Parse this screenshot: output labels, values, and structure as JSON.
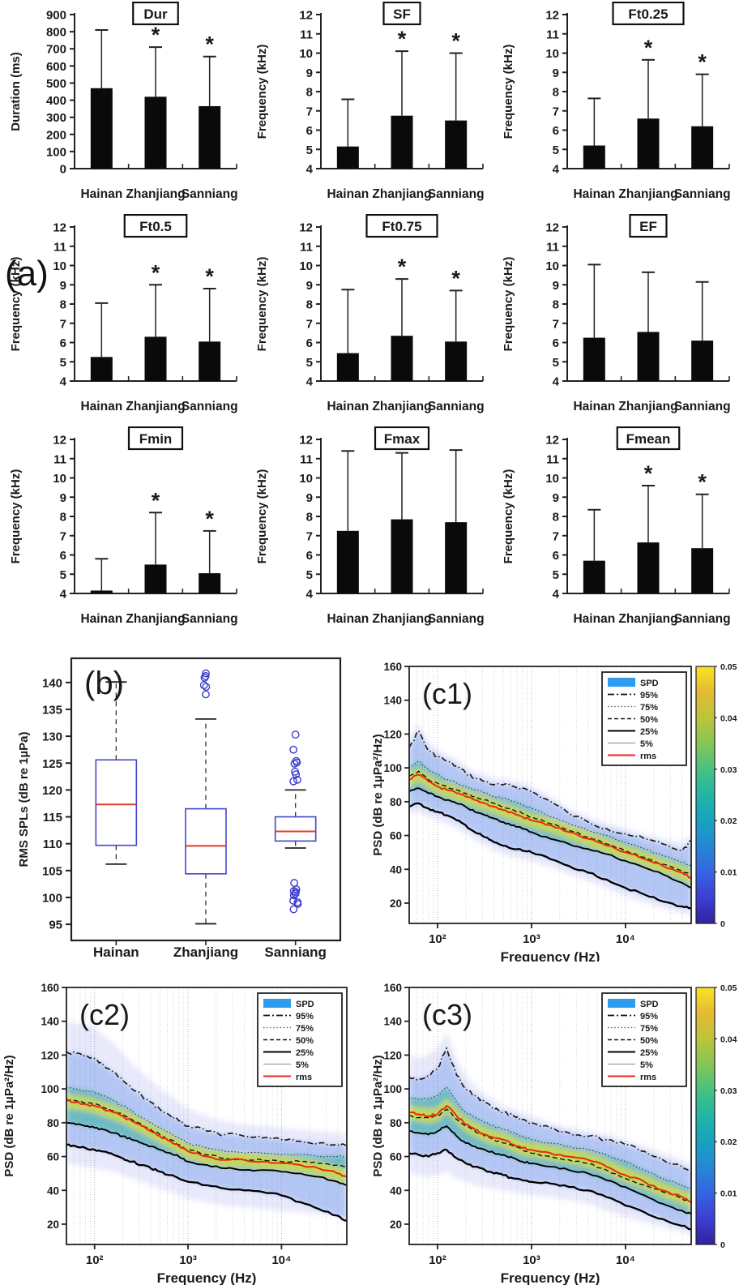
{
  "figure": {
    "panel_a_label": "(a)",
    "colors": {
      "bar": "#0a0a0a",
      "axis": "#222222",
      "box_stroke": "#4345cf",
      "median": "#e23b2e",
      "outlier": "#3a3ccc",
      "rms_line": "#e8281e",
      "spd_patch": "#2e9bef"
    }
  },
  "chart_data": [
    {
      "id": "dur",
      "type": "bar",
      "title": "Dur",
      "ylabel": "Duration (ms)",
      "ylim": [
        0,
        900
      ],
      "ytick_step": 100,
      "categories": [
        "Hainan",
        "Zhanjiang",
        "Sanniang"
      ],
      "values": [
        470,
        420,
        365
      ],
      "error_top": [
        810,
        710,
        655
      ],
      "sig": [
        false,
        true,
        true
      ]
    },
    {
      "id": "sf",
      "type": "bar",
      "title": "SF",
      "ylabel": "Frequency (kHz)",
      "ylim": [
        4,
        12
      ],
      "ytick_step": 1,
      "categories": [
        "Hainan",
        "Zhanjiang",
        "Sanniang"
      ],
      "values": [
        5.15,
        6.75,
        6.5
      ],
      "error_top": [
        7.6,
        10.1,
        10.0
      ],
      "sig": [
        false,
        true,
        true
      ]
    },
    {
      "id": "ft025",
      "type": "bar",
      "title": "Ft0.25",
      "ylabel": "Frequency (kHz)",
      "ylim": [
        4,
        12
      ],
      "ytick_step": 1,
      "categories": [
        "Hainan",
        "Zhanjiang",
        "Sanniang"
      ],
      "values": [
        5.2,
        6.6,
        6.2
      ],
      "error_top": [
        7.65,
        9.65,
        8.9
      ],
      "sig": [
        false,
        true,
        true
      ]
    },
    {
      "id": "ft05",
      "type": "bar",
      "title": "Ft0.5",
      "ylabel": "Frequency (kHz)",
      "ylim": [
        4,
        12
      ],
      "ytick_step": 1,
      "categories": [
        "Hainan",
        "Zhanjiang",
        "Sanniang"
      ],
      "values": [
        5.25,
        6.3,
        6.05
      ],
      "error_top": [
        8.05,
        9.0,
        8.8
      ],
      "sig": [
        false,
        true,
        true
      ]
    },
    {
      "id": "ft075",
      "type": "bar",
      "title": "Ft0.75",
      "ylabel": "Frequency (kHz)",
      "ylim": [
        4,
        12
      ],
      "ytick_step": 1,
      "categories": [
        "Hainan",
        "Zhanjiang",
        "Sanniang"
      ],
      "values": [
        5.45,
        6.35,
        6.05
      ],
      "error_top": [
        8.75,
        9.3,
        8.7
      ],
      "sig": [
        false,
        true,
        true
      ]
    },
    {
      "id": "ef",
      "type": "bar",
      "title": "EF",
      "ylabel": "Frequency (kHz)",
      "ylim": [
        4,
        12
      ],
      "ytick_step": 1,
      "categories": [
        "Hainan",
        "Zhanjiang",
        "Sanniang"
      ],
      "values": [
        6.25,
        6.55,
        6.1
      ],
      "error_top": [
        10.05,
        9.65,
        9.15
      ],
      "sig": [
        false,
        false,
        false
      ]
    },
    {
      "id": "fmin",
      "type": "bar",
      "title": "Fmin",
      "ylabel": "Frequency (kHz)",
      "ylim": [
        4,
        12
      ],
      "ytick_step": 1,
      "categories": [
        "Hainan",
        "Zhanjiang",
        "Sanniang"
      ],
      "values": [
        4.15,
        5.5,
        5.05
      ],
      "error_top": [
        5.8,
        8.2,
        7.25
      ],
      "sig": [
        false,
        true,
        true
      ]
    },
    {
      "id": "fmax",
      "type": "bar",
      "title": "Fmax",
      "ylabel": "Frequency (kHz)",
      "ylim": [
        4,
        12
      ],
      "ytick_step": 1,
      "categories": [
        "Hainan",
        "Zhanjiang",
        "Sanniang"
      ],
      "values": [
        7.25,
        7.85,
        7.7
      ],
      "error_top": [
        11.4,
        11.3,
        11.45
      ],
      "sig": [
        false,
        false,
        false
      ]
    },
    {
      "id": "fmean",
      "type": "bar",
      "title": "Fmean",
      "ylabel": "Frequency (kHz)",
      "ylim": [
        4,
        12
      ],
      "ytick_step": 1,
      "categories": [
        "Hainan",
        "Zhanjiang",
        "Sanniang"
      ],
      "values": [
        5.7,
        6.65,
        6.35
      ],
      "error_top": [
        8.35,
        9.6,
        9.15
      ],
      "sig": [
        false,
        true,
        true
      ]
    },
    {
      "id": "b",
      "type": "box",
      "label": "(b)",
      "ylabel": "RMS SPLs (dB re 1µPa)",
      "ylim": [
        92,
        144.5
      ],
      "yticks": [
        95,
        100,
        105,
        110,
        115,
        120,
        125,
        130,
        135,
        140
      ],
      "categories": [
        "Hainan",
        "Zhanjiang",
        "Sanniang"
      ],
      "boxes": [
        {
          "q1": 109.7,
          "median": 117.3,
          "q3": 125.6,
          "whisker_low": 106.2,
          "whisker_high": 140.1,
          "outliers": []
        },
        {
          "q1": 104.4,
          "median": 109.6,
          "q3": 116.5,
          "whisker_low": 95.1,
          "whisker_high": 133.2,
          "outliers": [
            137.8,
            139.2,
            139.5,
            140.9,
            141.2,
            141.7
          ]
        },
        {
          "q1": 110.5,
          "median": 112.3,
          "q3": 115.0,
          "whisker_low": 109.2,
          "whisker_high": 120.0,
          "outliers": [
            121.6,
            121.9,
            122.9,
            123.4,
            124.9,
            125.1,
            125.4,
            127.5,
            130.3,
            102.7,
            101.5,
            101.2,
            101.0,
            100.7,
            100.4,
            99.4,
            99.1,
            98.8,
            97.8
          ]
        }
      ]
    },
    {
      "id": "c1",
      "type": "spectral",
      "label": "(c1)",
      "ylabel": "PSD (dB re 1µPa²/Hz)",
      "xlabel": "Frequency (Hz)",
      "ylim": [
        8,
        160
      ],
      "yticks": [
        20,
        40,
        60,
        80,
        100,
        120,
        140,
        160
      ],
      "xlim": [
        50,
        50000
      ],
      "xticks": [
        {
          "value": 100,
          "label": "10²"
        },
        {
          "value": 1000,
          "label": "10³"
        },
        {
          "value": 10000,
          "label": "10⁴"
        }
      ],
      "legend": [
        {
          "label": "SPD",
          "style": "patch"
        },
        {
          "label": "95%",
          "style": "dashdot"
        },
        {
          "label": "75%",
          "style": "dotted"
        },
        {
          "label": "50%",
          "style": "dashed"
        },
        {
          "label": "25%",
          "style": "solid"
        },
        {
          "label": "5%",
          "style": "thin"
        },
        {
          "label": "rms",
          "style": "rms"
        }
      ],
      "colorbar": {
        "ticks": [
          "0.05",
          "0.04",
          "0.03",
          "0.02",
          "0.01",
          "0"
        ]
      },
      "x": [
        50,
        63,
        80,
        100,
        125,
        160,
        200,
        250,
        320,
        400,
        500,
        650,
        800,
        1000,
        1600,
        2500,
        4000,
        6300,
        10000,
        16000,
        25000,
        40000,
        50000
      ],
      "curves": {
        "p95": [
          112,
          122,
          110,
          107,
          104,
          101,
          97,
          94,
          92,
          90,
          90,
          89,
          88,
          86,
          80,
          73,
          68,
          64,
          61,
          58,
          55,
          51,
          57
        ],
        "p75": [
          100,
          104,
          99,
          96,
          93,
          91,
          89,
          87,
          85,
          83,
          82,
          80,
          78,
          76,
          71,
          67,
          63,
          60,
          56,
          52,
          48,
          44,
          42
        ],
        "p50": [
          95,
          98,
          93,
          91,
          89,
          87,
          85,
          83,
          81,
          79,
          77,
          75,
          73,
          71,
          67,
          63,
          59,
          55,
          51,
          47,
          43,
          39,
          37
        ],
        "rms": [
          93,
          96,
          92,
          89,
          87,
          85,
          83,
          81,
          79,
          77,
          75,
          73,
          71,
          69,
          66,
          62,
          58,
          54,
          50,
          46,
          42,
          38,
          35
        ],
        "p25": [
          86,
          88,
          85,
          83,
          81,
          79,
          77,
          74,
          72,
          70,
          68,
          66,
          64,
          62,
          58,
          55,
          52,
          49,
          45,
          41,
          37,
          32,
          29
        ],
        "p5": [
          77,
          79,
          76,
          74,
          72,
          69,
          66,
          62,
          59,
          56,
          54,
          52,
          51,
          50,
          46,
          42,
          38,
          34,
          29,
          25,
          21,
          18,
          17
        ]
      },
      "cloud_top": [
        118,
        126,
        115,
        111,
        108,
        105,
        101,
        98,
        96,
        94,
        94,
        92,
        91,
        89,
        83,
        76,
        71,
        67,
        64,
        61,
        58,
        56,
        60
      ],
      "cloud_bottom": [
        72,
        74,
        71,
        69,
        67,
        64,
        61,
        57,
        54,
        51,
        49,
        47,
        46,
        45,
        41,
        37,
        33,
        29,
        24,
        20,
        17,
        14,
        13
      ]
    },
    {
      "id": "c2",
      "type": "spectral",
      "label": "(c2)",
      "ylabel": "PSD (dB re 1µPa²/Hz)",
      "xlabel": "Frequency (Hz)",
      "ylim": [
        8,
        160
      ],
      "yticks": [
        20,
        40,
        60,
        80,
        100,
        120,
        140,
        160
      ],
      "xlim": [
        50,
        50000
      ],
      "xticks": [
        {
          "value": 100,
          "label": "10²"
        },
        {
          "value": 1000,
          "label": "10³"
        },
        {
          "value": 10000,
          "label": "10⁴"
        }
      ],
      "legend": [
        {
          "label": "SPD",
          "style": "patch"
        },
        {
          "label": "95%",
          "style": "dashdot"
        },
        {
          "label": "75%",
          "style": "dotted"
        },
        {
          "label": "50%",
          "style": "dashed"
        },
        {
          "label": "25%",
          "style": "solid"
        },
        {
          "label": "5%",
          "style": "thin"
        },
        {
          "label": "rms",
          "style": "rms"
        }
      ],
      "colorbar": null,
      "x": [
        50,
        63,
        80,
        100,
        125,
        160,
        200,
        250,
        320,
        400,
        500,
        650,
        800,
        1000,
        1600,
        2500,
        4000,
        6300,
        10000,
        16000,
        25000,
        40000,
        50000
      ],
      "curves": {
        "p95": [
          122,
          121,
          120,
          118,
          114,
          110,
          105,
          100,
          96,
          92,
          88,
          84,
          81,
          78,
          75,
          73,
          72,
          71,
          70,
          69,
          68,
          67,
          66
        ],
        "p75": [
          101,
          100,
          99,
          98,
          96,
          93,
          90,
          87,
          83,
          80,
          77,
          74,
          71,
          68,
          65,
          63,
          62,
          62,
          61,
          61,
          60,
          60,
          60
        ],
        "p50": [
          94,
          93,
          92,
          91,
          89,
          87,
          85,
          82,
          79,
          76,
          73,
          70,
          67,
          64,
          61,
          59,
          58,
          58,
          57,
          57,
          56,
          55,
          54
        ],
        "rms": [
          93,
          92,
          91,
          90,
          88,
          86,
          84,
          81,
          78,
          75,
          72,
          69,
          66,
          63,
          60,
          58,
          58,
          57,
          56,
          55,
          53,
          50,
          48
        ],
        "p25": [
          80,
          79,
          78,
          77,
          76,
          74,
          72,
          70,
          68,
          66,
          64,
          62,
          60,
          57,
          55,
          53,
          52,
          52,
          51,
          50,
          48,
          45,
          43
        ],
        "p5": [
          67,
          66,
          65,
          64,
          63,
          61,
          59,
          57,
          55,
          53,
          51,
          49,
          47,
          45,
          43,
          41,
          40,
          39,
          37,
          33,
          29,
          25,
          22
        ]
      },
      "cloud_top": [
        140,
        139,
        138,
        136,
        132,
        127,
        121,
        115,
        110,
        105,
        100,
        96,
        92,
        88,
        84,
        81,
        79,
        78,
        77,
        76,
        75,
        74,
        73
      ],
      "cloud_bottom": [
        56,
        55,
        54,
        53,
        52,
        51,
        49,
        47,
        45,
        43,
        41,
        39,
        37,
        35,
        33,
        31,
        30,
        29,
        28,
        27,
        26,
        25,
        24
      ]
    },
    {
      "id": "c3",
      "type": "spectral",
      "label": "(c3)",
      "ylabel": "PSD (dB re 1µPa²/Hz)",
      "xlabel": "Frequency (Hz)",
      "ylim": [
        8,
        160
      ],
      "yticks": [
        20,
        40,
        60,
        80,
        100,
        120,
        140,
        160
      ],
      "xlim": [
        50,
        50000
      ],
      "xticks": [
        {
          "value": 100,
          "label": "10²"
        },
        {
          "value": 1000,
          "label": "10³"
        },
        {
          "value": 10000,
          "label": "10⁴"
        }
      ],
      "legend": [
        {
          "label": "SPD",
          "style": "patch"
        },
        {
          "label": "95%",
          "style": "dashdot"
        },
        {
          "label": "75%",
          "style": "dotted"
        },
        {
          "label": "50%",
          "style": "dashed"
        },
        {
          "label": "25%",
          "style": "solid"
        },
        {
          "label": "5%",
          "style": "thin"
        },
        {
          "label": "rms",
          "style": "rms"
        }
      ],
      "colorbar": {
        "ticks": [
          "0.05",
          "0.04",
          "0.03",
          "0.02",
          "0.01",
          "0"
        ]
      },
      "x": [
        50,
        63,
        80,
        100,
        125,
        160,
        200,
        250,
        320,
        400,
        500,
        650,
        800,
        1000,
        1600,
        2500,
        4000,
        6300,
        10000,
        16000,
        25000,
        40000,
        50000
      ],
      "curves": {
        "p95": [
          107,
          106,
          108,
          112,
          124,
          108,
          100,
          96,
          92,
          88,
          86,
          84,
          82,
          80,
          77,
          74,
          72,
          70,
          67,
          63,
          58,
          54,
          52
        ],
        "p75": [
          95,
          94,
          94,
          96,
          101,
          92,
          86,
          83,
          80,
          78,
          76,
          74,
          72,
          70,
          68,
          66,
          64,
          61,
          57,
          52,
          47,
          43,
          41
        ],
        "p50": [
          84,
          83,
          83,
          84,
          88,
          82,
          78,
          75,
          72,
          70,
          68,
          66,
          64,
          62,
          60,
          58,
          56,
          52,
          47,
          43,
          39,
          35,
          33
        ],
        "rms": [
          86,
          85,
          84,
          85,
          90,
          84,
          79,
          76,
          73,
          71,
          70,
          67,
          65,
          64,
          62,
          60,
          58,
          54,
          49,
          45,
          40,
          36,
          33
        ],
        "p25": [
          75,
          74,
          73,
          75,
          78,
          72,
          68,
          66,
          64,
          62,
          61,
          59,
          57,
          56,
          54,
          52,
          50,
          46,
          42,
          37,
          32,
          28,
          26
        ],
        "p5": [
          62,
          61,
          60,
          62,
          64,
          59,
          56,
          54,
          52,
          50,
          49,
          47,
          46,
          45,
          44,
          42,
          40,
          36,
          31,
          27,
          23,
          19,
          17
        ]
      },
      "cloud_top": [
        120,
        118,
        120,
        124,
        133,
        118,
        108,
        102,
        97,
        93,
        90,
        88,
        86,
        84,
        80,
        77,
        75,
        73,
        70,
        66,
        62,
        58,
        56
      ],
      "cloud_bottom": [
        50,
        49,
        48,
        49,
        51,
        47,
        45,
        43,
        42,
        41,
        40,
        39,
        38,
        37,
        36,
        34,
        32,
        28,
        24,
        21,
        18,
        15,
        14
      ]
    }
  ]
}
